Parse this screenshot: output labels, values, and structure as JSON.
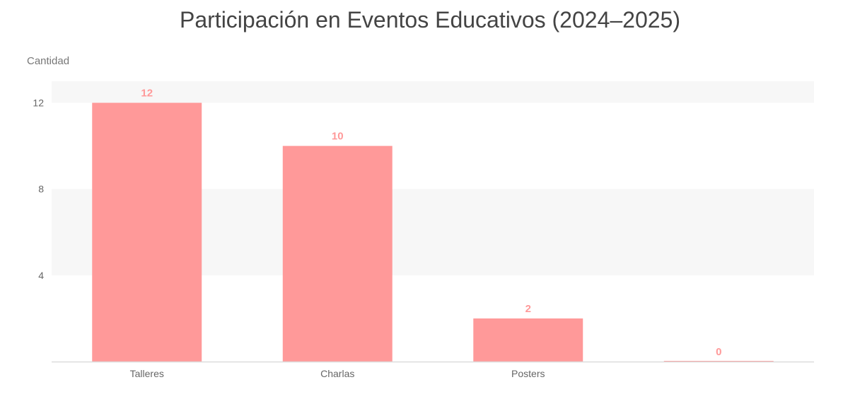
{
  "chart_data": {
    "type": "bar",
    "title": "Participación en Eventos Educativos (2024–2025)",
    "ylabel": "Cantidad",
    "xlabel": "",
    "categories": [
      "Talleres",
      "Charlas",
      "Posters",
      ""
    ],
    "values": [
      12,
      10,
      2,
      0
    ],
    "ylim": [
      0,
      13
    ],
    "yticks": [
      4,
      8,
      12
    ],
    "grid": "alternating horizontal bands",
    "bar_color": "#ff9999",
    "label_color": "#ff9999"
  }
}
